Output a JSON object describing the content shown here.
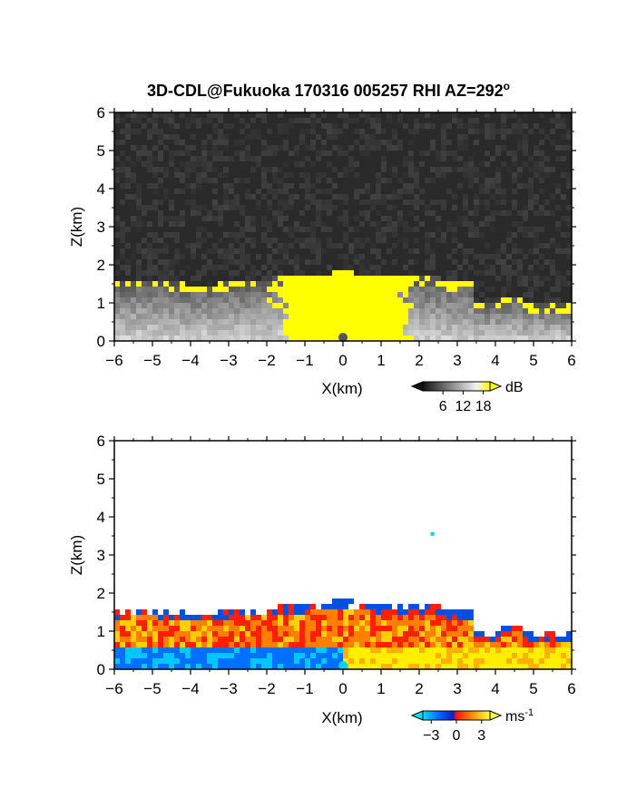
{
  "chart_data": [
    {
      "type": "heatmap",
      "title": "3D-CDL@Fukuoka 170316 005257 RHI AZ=292",
      "title_sup": "o",
      "xlabel": "X(km)",
      "ylabel": "Z(km)",
      "xlim": [
        -6,
        6
      ],
      "ylim": [
        0,
        6
      ],
      "xticks": [
        "-6",
        "-5",
        "-4",
        "-3",
        "-2",
        "-1",
        "0",
        "1",
        "2",
        "3",
        "4",
        "5",
        "6"
      ],
      "yticks": [
        "0",
        "1",
        "2",
        "3",
        "4",
        "5",
        "6"
      ],
      "colorbar": {
        "unit": "dB",
        "ticks": [
          "6",
          "12",
          "18"
        ],
        "tick_values": [
          6,
          12,
          18
        ],
        "range": [
          0,
          20
        ]
      },
      "colors": {
        "noise": "#2a2a2a",
        "strong": "#ffff00",
        "weak": "#dcdcdc"
      }
    },
    {
      "type": "heatmap",
      "title": "",
      "xlabel": "X(km)",
      "ylabel": "Z(km)",
      "xlim": [
        -6,
        6
      ],
      "ylim": [
        0,
        6
      ],
      "xticks": [
        "-6",
        "-5",
        "-4",
        "-3",
        "-2",
        "-1",
        "0",
        "1",
        "2",
        "3",
        "4",
        "5",
        "6"
      ],
      "yticks": [
        "0",
        "1",
        "2",
        "3",
        "4",
        "5",
        "6"
      ],
      "colorbar": {
        "unit": "ms",
        "unit_sup": "-1",
        "ticks": [
          "-3",
          "0",
          "3"
        ],
        "tick_values": [
          -3,
          0,
          3
        ],
        "range": [
          -4,
          4
        ]
      },
      "colors": {
        "negative": "#0070ff",
        "zero": "#ff2000",
        "positive": "#ffee00"
      }
    }
  ]
}
